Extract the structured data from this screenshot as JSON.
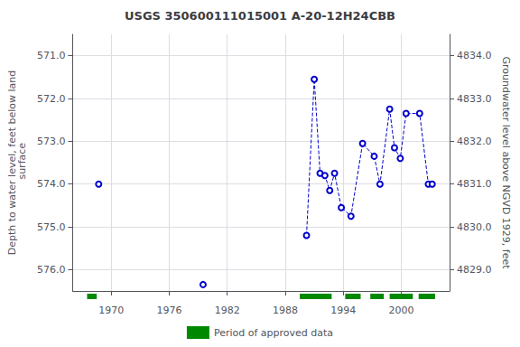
{
  "chart_data": {
    "type": "line",
    "title": "USGS 350600111015001 A-20-12H24CBB",
    "ylabel": "Depth to water level, feet below land\n surface",
    "y2label": "Groundwater level above NGVD 1929, feet",
    "xlim": [
      1966,
      2005
    ],
    "xticks": [
      1970,
      1976,
      1982,
      1988,
      1994,
      2000
    ],
    "ylim": [
      576.5,
      570.5
    ],
    "yticks": [
      {
        "value": 571.0,
        "label": "571.0"
      },
      {
        "value": 572.0,
        "label": "572.0"
      },
      {
        "value": 573.0,
        "label": "573.0"
      },
      {
        "value": 574.0,
        "label": "574.0"
      },
      {
        "value": 575.0,
        "label": "575.0"
      },
      {
        "value": 576.0,
        "label": "576.0"
      }
    ],
    "y2lim": [
      4828.5,
      4834.5
    ],
    "y2ticks": [
      {
        "value": 4834.0,
        "label": "4834.0"
      },
      {
        "value": 4833.0,
        "label": "4833.0"
      },
      {
        "value": 4832.0,
        "label": "4832.0"
      },
      {
        "value": 4831.0,
        "label": "4831.0"
      },
      {
        "value": 4830.0,
        "label": "4830.0"
      },
      {
        "value": 4829.0,
        "label": "4829.0"
      }
    ],
    "grid": true,
    "series": [
      {
        "color": "#0000cc",
        "line_style": "dashed",
        "marker": "emptyCircle",
        "x": [
          1968.7
        ],
        "values": [
          574.0
        ]
      },
      {
        "color": "#0000cc",
        "line_style": "dashed",
        "marker": "emptyCircle",
        "x": [
          1979.5
        ],
        "values": [
          576.35
        ]
      },
      {
        "color": "#0000cc",
        "line_style": "dashed",
        "marker": "emptyCircle",
        "x": [
          1990.2,
          1991.0,
          1991.6,
          1992.1,
          1992.6,
          1993.1,
          1993.8,
          1994.8,
          1996.0,
          1997.2,
          1997.8,
          1998.8,
          1999.3,
          1999.9,
          2000.5,
          2001.9,
          2002.8,
          2003.2
        ],
        "values": [
          575.2,
          571.55,
          573.75,
          573.8,
          574.15,
          573.75,
          574.55,
          574.75,
          573.05,
          573.35,
          574.0,
          572.25,
          573.15,
          573.4,
          572.35,
          572.35,
          574.0,
          574.0
        ]
      }
    ],
    "approved_periods": [
      [
        1967.5,
        1968.5
      ],
      [
        1989.5,
        1992.8
      ],
      [
        1994.2,
        1995.8
      ],
      [
        1996.8,
        1998.2
      ],
      [
        1998.8,
        2001.2
      ],
      [
        2001.8,
        2003.5
      ]
    ],
    "approved_color": "#008800",
    "approved_label": "Period of approved data",
    "legend": "bottom"
  }
}
